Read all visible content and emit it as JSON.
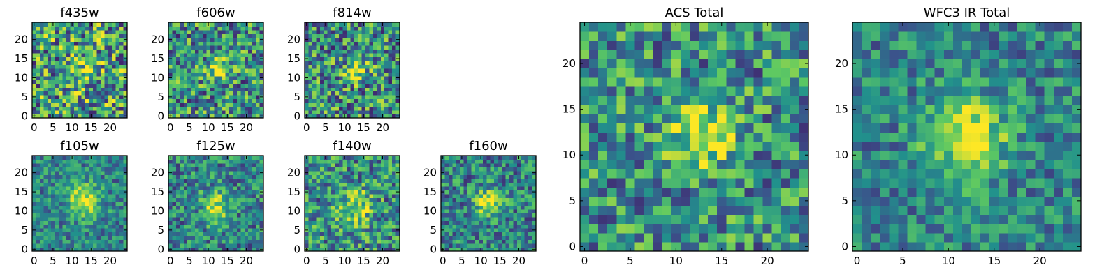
{
  "figure": {
    "title": ""
  },
  "colormap": {
    "name": "viridis",
    "stops": [
      "#440154",
      "#3b528b",
      "#21918c",
      "#5ec962",
      "#fde725"
    ]
  },
  "chart_data": [
    {
      "type": "heatmap",
      "title": "f435w",
      "grid_size": 25,
      "xlim": [
        0,
        24
      ],
      "ylim": [
        0,
        24
      ],
      "xticks": [
        0,
        5,
        10,
        15,
        20
      ],
      "yticks": [
        0,
        5,
        10,
        15,
        20
      ],
      "peak": {
        "x": 14,
        "y": 12,
        "amplitude": 0.25,
        "width": 2.5
      },
      "noise_level": 0.45,
      "background": 0.55
    },
    {
      "type": "heatmap",
      "title": "f606w",
      "grid_size": 25,
      "xlim": [
        0,
        24
      ],
      "ylim": [
        0,
        24
      ],
      "xticks": [
        0,
        5,
        10,
        15,
        20
      ],
      "yticks": [
        0,
        5,
        10,
        15,
        20
      ],
      "peak": {
        "x": 12,
        "y": 12,
        "amplitude": 0.4,
        "width": 2.0
      },
      "noise_level": 0.4,
      "background": 0.5
    },
    {
      "type": "heatmap",
      "title": "f814w",
      "grid_size": 25,
      "xlim": [
        0,
        24
      ],
      "ylim": [
        0,
        24
      ],
      "xticks": [
        0,
        5,
        10,
        15,
        20
      ],
      "yticks": [
        0,
        5,
        10,
        15,
        20
      ],
      "peak": {
        "x": 13,
        "y": 12,
        "amplitude": 0.45,
        "width": 2.0
      },
      "noise_level": 0.4,
      "background": 0.5
    },
    {
      "type": "heatmap",
      "title": "f105w",
      "grid_size": 25,
      "xlim": [
        0,
        24
      ],
      "ylim": [
        0,
        24
      ],
      "xticks": [
        0,
        5,
        10,
        15,
        20
      ],
      "yticks": [
        0,
        5,
        10,
        15,
        20
      ],
      "peak": {
        "x": 13,
        "y": 13,
        "amplitude": 0.5,
        "width": 3.0
      },
      "noise_level": 0.25,
      "background": 0.45
    },
    {
      "type": "heatmap",
      "title": "f125w",
      "grid_size": 25,
      "xlim": [
        0,
        24
      ],
      "ylim": [
        0,
        24
      ],
      "xticks": [
        0,
        5,
        10,
        15,
        20
      ],
      "yticks": [
        0,
        5,
        10,
        15,
        20
      ],
      "peak": {
        "x": 12,
        "y": 11,
        "amplitude": 0.5,
        "width": 2.5
      },
      "noise_level": 0.3,
      "background": 0.45
    },
    {
      "type": "heatmap",
      "title": "f140w",
      "grid_size": 25,
      "xlim": [
        0,
        24
      ],
      "ylim": [
        0,
        24
      ],
      "xticks": [
        0,
        5,
        10,
        15,
        20
      ],
      "yticks": [
        0,
        5,
        10,
        15,
        20
      ],
      "peak": {
        "x": 13,
        "y": 11,
        "amplitude": 0.4,
        "width": 3.0
      },
      "noise_level": 0.35,
      "background": 0.5
    },
    {
      "type": "heatmap",
      "title": "f160w",
      "grid_size": 25,
      "xlim": [
        0,
        24
      ],
      "ylim": [
        0,
        24
      ],
      "xticks": [
        0,
        5,
        10,
        15,
        20
      ],
      "yticks": [
        0,
        5,
        10,
        15,
        20
      ],
      "peak": {
        "x": 12,
        "y": 12,
        "amplitude": 0.55,
        "width": 2.5
      },
      "noise_level": 0.3,
      "background": 0.45
    },
    {
      "type": "heatmap",
      "title": "ACS Total",
      "grid_size": 25,
      "xlim": [
        0,
        24
      ],
      "ylim": [
        0,
        24
      ],
      "xticks": [
        0,
        5,
        10,
        15,
        20
      ],
      "yticks": [
        0,
        5,
        10,
        15,
        20
      ],
      "peak": {
        "x": 13,
        "y": 12,
        "amplitude": 0.5,
        "width": 2.5
      },
      "noise_level": 0.35,
      "background": 0.5
    },
    {
      "type": "heatmap",
      "title": "WFC3 IR Total",
      "grid_size": 25,
      "xlim": [
        0,
        24
      ],
      "ylim": [
        0,
        24
      ],
      "xticks": [
        0,
        5,
        10,
        15,
        20
      ],
      "yticks": [
        0,
        5,
        10,
        15,
        20
      ],
      "peak": {
        "x": 12,
        "y": 12,
        "amplitude": 0.55,
        "width": 3.0
      },
      "noise_level": 0.25,
      "background": 0.45
    }
  ]
}
